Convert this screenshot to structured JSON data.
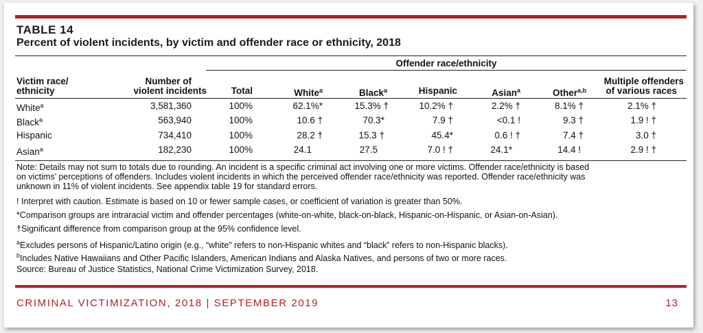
{
  "table": {
    "label": "TABLE 14",
    "title": "Percent of violent incidents, by victim and offender race or ethnicity, 2018",
    "offender_group_header": "Offender race/ethnicity",
    "headers": {
      "victim_line1": "Victim race/",
      "victim_line2": "ethnicity",
      "incidents_line1": "Number of",
      "incidents_line2": "violent incidents",
      "total": "Total",
      "white": "White",
      "white_sup": "a",
      "black": "Black",
      "black_sup": "a",
      "hispanic": "Hispanic",
      "asian": "Asian",
      "asian_sup": "a",
      "other": "Other",
      "other_sup": "a,b",
      "multiple_line1": "Multiple offenders",
      "multiple_line2": "of various races"
    },
    "rows": [
      {
        "victim": "White",
        "victim_sup": "a",
        "incidents": "3,581,360",
        "total": "100%",
        "white": "62.1%*",
        "black": "15.3% †",
        "hispanic": "10.2% †",
        "asian": "2.2% †",
        "other": "8.1% †",
        "multiple": "2.1% †"
      },
      {
        "victim": "Black",
        "victim_sup": "a",
        "incidents": "563,940",
        "total": "100%",
        "white": "10.6 †",
        "black": "70.3*",
        "hispanic": "7.9 †",
        "asian": "<0.1 !",
        "other": "9.3 †",
        "multiple": "1.9 ! †"
      },
      {
        "victim": "Hispanic",
        "victim_sup": "",
        "incidents": "734,410",
        "total": "100%",
        "white": "28.2 †",
        "black": "15.3 †",
        "hispanic": "45.4*",
        "asian": "0.6 ! †",
        "other": "7.4 †",
        "multiple": "3.0 †"
      },
      {
        "victim": "Asian",
        "victim_sup": "a",
        "incidents": "182,230",
        "total": "100%",
        "white": "24.1",
        "black": "27.5",
        "hispanic": "7.0 ! †",
        "asian": "24.1*",
        "other": "14.4 !",
        "multiple": "2.9 ! †"
      }
    ]
  },
  "notes": {
    "note_line1": "Note: Details may not sum to totals due to rounding. An incident is a specific criminal act involving one or more victims. Offender race/ethnicity is based",
    "note_line2": "on victims’ perceptions of offenders. Includes violent incidents in which the perceived offender race/ethnicity was reported. Offender race/ethnicity was",
    "note_line3": "unknown in 11% of violent incidents. See appendix table 19 for standard errors.",
    "caution": "! Interpret with caution. Estimate is based on 10 or fewer sample cases, or coefficient of variation is greater than 50%.",
    "comparison": "*Comparison groups are intraracial victim and offender percentages (white-on-white, black-on-black, Hispanic-on-Hispanic, or Asian-on-Asian).",
    "significant": "†Significant difference from comparison group at the 95% confidence level.",
    "footnote_a_mark": "a",
    "footnote_a": "Excludes persons of Hispanic/Latino origin (e.g., “white” refers to non-Hispanic whites and “black” refers to non-Hispanic blacks).",
    "footnote_b_mark": "b",
    "footnote_b": "Includes Native Hawaiians and Other Pacific Islanders, American Indians and Alaska Natives, and persons of two or more races.",
    "source": "Source: Bureau of Justice Statistics, National Crime Victimization Survey, 2018."
  },
  "footer": {
    "left": "CRIMINAL VICTIMIZATION, 2018 | SEPTEMBER 2019",
    "page_number": "13"
  },
  "colors": {
    "accent": "#b11f24"
  }
}
